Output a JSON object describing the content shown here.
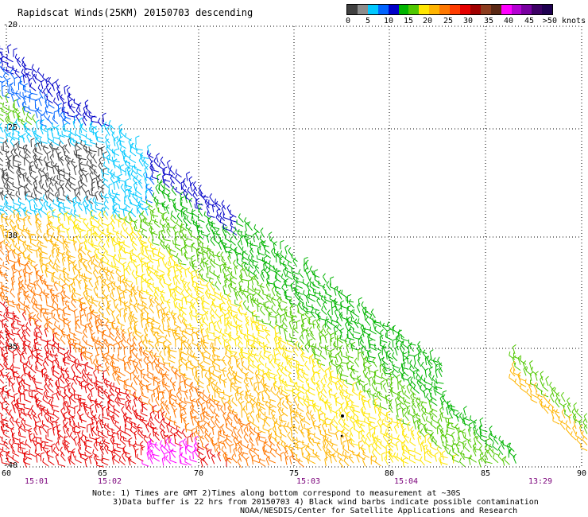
{
  "title": "Rapidscat Winds(25KM) 20150703 descending",
  "colorbar": {
    "colors": [
      "#404040",
      "#8c8c8c",
      "#00c8ff",
      "#0064ff",
      "#0000c8",
      "#00b400",
      "#50c800",
      "#ffe600",
      "#ffb400",
      "#ff7800",
      "#ff3c00",
      "#e60000",
      "#a00000",
      "#8c3c1e",
      "#5a2814",
      "#ff00ff",
      "#b400d2",
      "#7800a0",
      "#3c0064",
      "#1e0050"
    ],
    "labels": [
      "0",
      "5",
      "10",
      "15",
      "20",
      "25",
      "30",
      "35",
      "40",
      "45",
      ">50 knots"
    ]
  },
  "axes": {
    "lat_labels": [
      "-20",
      "-25",
      "-30",
      "-35",
      "-40"
    ],
    "lon_labels": [
      "60",
      "65",
      "70",
      "75",
      "80",
      "85",
      "90"
    ]
  },
  "times": [
    "15:01",
    "15:02",
    "15:03",
    "15:04",
    "13:29"
  ],
  "notes": [
    "Note: 1) Times are GMT 2)Times along bottom correspond to measurement at ~30S",
    "3)Data buffer is 22 hrs from 20150703 4) Black wind barbs indicate possible contamination",
    "NOAA/NESDIS/Center for Satellite Applications and Research"
  ]
}
